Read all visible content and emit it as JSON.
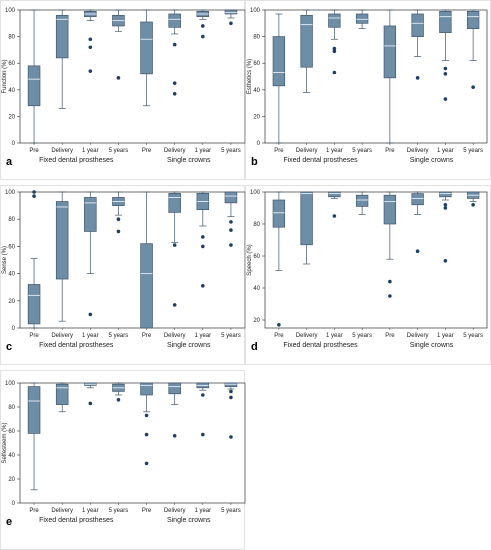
{
  "chart_data": [
    {
      "type": "box",
      "panel": "a",
      "ylabel": "Function (%)",
      "ylim": [
        0,
        100
      ],
      "yticks": [
        0,
        20,
        40,
        60,
        80,
        100
      ],
      "categories": [
        "Pre",
        "Delivery",
        "1 year",
        "5 years",
        "Pre",
        "Delivery",
        "1 year",
        "5 years"
      ],
      "groups": [
        "Fixed dental prostheses",
        "Single crowns"
      ],
      "boxes": [
        {
          "min": 0,
          "q1": 28,
          "median": 48,
          "q3": 58,
          "max": 100,
          "outliers": []
        },
        {
          "min": 26,
          "q1": 64,
          "median": 93,
          "q3": 96,
          "max": 100,
          "outliers": []
        },
        {
          "min": 92,
          "q1": 95,
          "median": 97,
          "q3": 99,
          "max": 100,
          "outliers": [
            78,
            72,
            54
          ]
        },
        {
          "min": 84,
          "q1": 88,
          "median": 92,
          "q3": 96,
          "max": 100,
          "outliers": [
            49
          ]
        },
        {
          "min": 28,
          "q1": 52,
          "median": 78,
          "q3": 91,
          "max": 100,
          "outliers": []
        },
        {
          "min": 82,
          "q1": 87,
          "median": 93,
          "q3": 97,
          "max": 100,
          "outliers": [
            74,
            45,
            37
          ]
        },
        {
          "min": 93,
          "q1": 95,
          "median": 97,
          "q3": 99,
          "max": 100,
          "outliers": [
            88,
            80
          ]
        },
        {
          "min": 94,
          "q1": 97,
          "median": 98,
          "q3": 100,
          "max": 100,
          "outliers": [
            90
          ]
        }
      ]
    },
    {
      "type": "box",
      "panel": "b",
      "ylabel": "Esthetics (%)",
      "ylim": [
        0,
        100
      ],
      "yticks": [
        0,
        20,
        40,
        60,
        80,
        100
      ],
      "categories": [
        "Pre",
        "Delivery",
        "1 year",
        "5 years",
        "Pre",
        "Delivery",
        "1 year",
        "5 years"
      ],
      "groups": [
        "Fixed dental prostheses",
        "Single crowns"
      ],
      "boxes": [
        {
          "min": 0,
          "q1": 43,
          "median": 53,
          "q3": 80,
          "max": 97,
          "outliers": []
        },
        {
          "min": 38,
          "q1": 57,
          "median": 89,
          "q3": 96,
          "max": 100,
          "outliers": []
        },
        {
          "min": 78,
          "q1": 87,
          "median": 94,
          "q3": 97,
          "max": 100,
          "outliers": [
            71,
            69,
            53
          ]
        },
        {
          "min": 86,
          "q1": 90,
          "median": 93,
          "q3": 97,
          "max": 100,
          "outliers": []
        },
        {
          "min": 0,
          "q1": 49,
          "median": 73,
          "q3": 88,
          "max": 100,
          "outliers": []
        },
        {
          "min": 65,
          "q1": 80,
          "median": 90,
          "q3": 97,
          "max": 100,
          "outliers": [
            49
          ]
        },
        {
          "min": 62,
          "q1": 83,
          "median": 95,
          "q3": 99,
          "max": 100,
          "outliers": [
            56,
            52,
            33
          ]
        },
        {
          "min": 62,
          "q1": 86,
          "median": 95,
          "q3": 99,
          "max": 100,
          "outliers": [
            42
          ]
        }
      ]
    },
    {
      "type": "box",
      "panel": "c",
      "ylabel": "Sense (%)",
      "ylim": [
        0,
        100
      ],
      "yticks": [
        0,
        20,
        40,
        60,
        80,
        100
      ],
      "categories": [
        "Pre",
        "Delivery",
        "1 year",
        "5 years",
        "Pre",
        "Delivery",
        "1 year",
        "5 years"
      ],
      "groups": [
        "Fixed dental prostheses",
        "Single crowns"
      ],
      "boxes": [
        {
          "min": 0,
          "q1": 3,
          "median": 24,
          "q3": 32,
          "max": 51,
          "outliers": [
            100,
            97
          ]
        },
        {
          "min": 5,
          "q1": 36,
          "median": 89,
          "q3": 93,
          "max": 100,
          "outliers": []
        },
        {
          "min": 40,
          "q1": 71,
          "median": 92,
          "q3": 96,
          "max": 100,
          "outliers": [
            10
          ]
        },
        {
          "min": 83,
          "q1": 90,
          "median": 93,
          "q3": 96,
          "max": 100,
          "outliers": [
            80,
            71
          ]
        },
        {
          "min": 0,
          "q1": 0,
          "median": 40,
          "q3": 62,
          "max": 100,
          "outliers": []
        },
        {
          "min": 63,
          "q1": 85,
          "median": 96,
          "q3": 99,
          "max": 100,
          "outliers": [
            61,
            17
          ]
        },
        {
          "min": 75,
          "q1": 87,
          "median": 93,
          "q3": 99,
          "max": 100,
          "outliers": [
            67,
            60,
            31
          ]
        },
        {
          "min": 82,
          "q1": 92,
          "median": 97,
          "q3": 100,
          "max": 100,
          "outliers": [
            78,
            72,
            61
          ]
        }
      ]
    },
    {
      "type": "box",
      "panel": "d",
      "ylabel": "Speech (%)",
      "ylim": [
        15,
        100
      ],
      "yticks": [
        20,
        40,
        60,
        80,
        100
      ],
      "categories": [
        "Pre",
        "Delivery",
        "1 year",
        "5 years",
        "Pre",
        "Delivery",
        "1 year",
        "5 years"
      ],
      "groups": [
        "Fixed dental prostheses",
        "Single crowns"
      ],
      "boxes": [
        {
          "min": 51,
          "q1": 78,
          "median": 87,
          "q3": 95,
          "max": 100,
          "outliers": [
            17
          ]
        },
        {
          "min": 55,
          "q1": 67,
          "median": 99,
          "q3": 100,
          "max": 100,
          "outliers": []
        },
        {
          "min": 96,
          "q1": 97,
          "median": 99,
          "q3": 100,
          "max": 100,
          "outliers": [
            85
          ]
        },
        {
          "min": 86,
          "q1": 91,
          "median": 95,
          "q3": 98,
          "max": 100,
          "outliers": []
        },
        {
          "min": 58,
          "q1": 80,
          "median": 94,
          "q3": 98,
          "max": 100,
          "outliers": [
            44,
            35
          ]
        },
        {
          "min": 86,
          "q1": 92,
          "median": 96,
          "q3": 99,
          "max": 100,
          "outliers": [
            63
          ]
        },
        {
          "min": 95,
          "q1": 97,
          "median": 99,
          "q3": 100,
          "max": 100,
          "outliers": [
            92,
            90,
            57
          ]
        },
        {
          "min": 94,
          "q1": 96,
          "median": 98,
          "q3": 100,
          "max": 100,
          "outliers": [
            92
          ]
        }
      ]
    },
    {
      "type": "box",
      "panel": "e",
      "ylabel": "Selfesteem (%)",
      "ylim": [
        0,
        100
      ],
      "yticks": [
        0,
        20,
        40,
        60,
        80,
        100
      ],
      "categories": [
        "Pre",
        "Delivery",
        "1 year",
        "5 years",
        "Pre",
        "Delivery",
        "1 year",
        "5 years"
      ],
      "groups": [
        "Fixed dental prostheses",
        "Single crowns"
      ],
      "boxes": [
        {
          "min": 11,
          "q1": 58,
          "median": 85,
          "q3": 97,
          "max": 100,
          "outliers": []
        },
        {
          "min": 76,
          "q1": 82,
          "median": 96,
          "q3": 99,
          "max": 100,
          "outliers": []
        },
        {
          "min": 96,
          "q1": 98,
          "median": 99,
          "q3": 100,
          "max": 100,
          "outliers": [
            83
          ]
        },
        {
          "min": 90,
          "q1": 93,
          "median": 96,
          "q3": 99,
          "max": 100,
          "outliers": [
            86
          ]
        },
        {
          "min": 76,
          "q1": 90,
          "median": 98,
          "q3": 100,
          "max": 100,
          "outliers": [
            73,
            57,
            33
          ]
        },
        {
          "min": 82,
          "q1": 91,
          "median": 97,
          "q3": 100,
          "max": 100,
          "outliers": [
            56
          ]
        },
        {
          "min": 94,
          "q1": 96,
          "median": 98,
          "q3": 100,
          "max": 100,
          "outliers": [
            90,
            57
          ]
        },
        {
          "min": 95,
          "q1": 97,
          "median": 99,
          "q3": 100,
          "max": 100,
          "outliers": [
            93,
            88,
            55
          ]
        }
      ]
    }
  ],
  "style": {
    "box_fill": "#6e8ea8",
    "box_stroke": "#40566b",
    "outlier_color": "#1f3f66"
  }
}
